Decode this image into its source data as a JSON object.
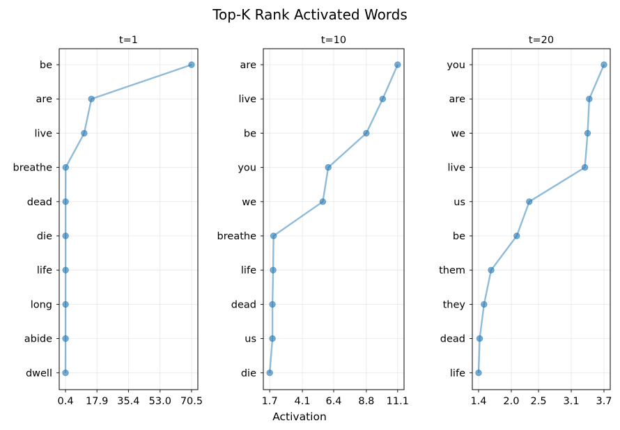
{
  "figure": {
    "title": "Top-K Rank Activated Words",
    "xlabel": "Activation"
  },
  "colors": {
    "line": "#1f77b4",
    "line_alpha": 0.5,
    "marker_alpha": 0.6
  },
  "chart_data": [
    {
      "type": "line",
      "title": "t=1",
      "categories": [
        "be",
        "are",
        "live",
        "breathe",
        "dead",
        "die",
        "life",
        "long",
        "abide",
        "dwell"
      ],
      "values": [
        70.5,
        14.8,
        10.8,
        0.5,
        0.45,
        0.45,
        0.45,
        0.43,
        0.42,
        0.4
      ],
      "xticks": [
        "0.4",
        "17.9",
        "35.4",
        "53.0",
        "70.5"
      ],
      "xlim": [
        -3.1,
        74.0
      ],
      "grid": true
    },
    {
      "type": "line",
      "title": "t=10",
      "categories": [
        "are",
        "live",
        "be",
        "you",
        "we",
        "breathe",
        "life",
        "dead",
        "us",
        "die"
      ],
      "values": [
        11.1,
        10.0,
        8.8,
        6.0,
        5.6,
        1.98,
        1.95,
        1.9,
        1.9,
        1.7
      ],
      "xticks": [
        "1.7",
        "4.1",
        "6.4",
        "8.8",
        "11.1"
      ],
      "xlim": [
        1.23,
        11.57
      ],
      "grid": true
    },
    {
      "type": "line",
      "title": "t=20",
      "categories": [
        "you",
        "are",
        "we",
        "live",
        "us",
        "be",
        "them",
        "they",
        "dead",
        "life"
      ],
      "values": [
        3.7,
        3.43,
        3.4,
        3.35,
        2.33,
        2.1,
        1.63,
        1.5,
        1.42,
        1.4
      ],
      "xticks": [
        "1.4",
        "2.0",
        "2.5",
        "3.1",
        "3.7"
      ],
      "xlim": [
        1.285,
        3.815
      ],
      "grid": true
    }
  ]
}
